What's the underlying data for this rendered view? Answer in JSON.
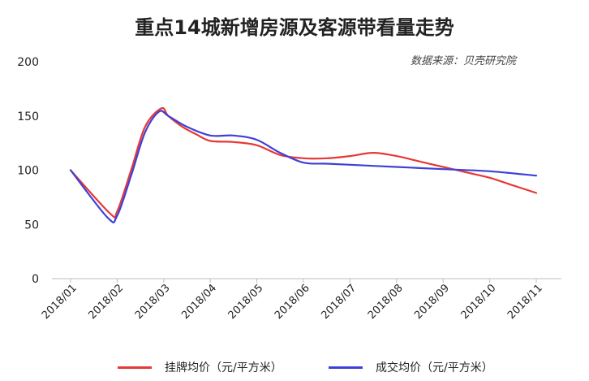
{
  "chart_data": {
    "type": "line",
    "title": "重点14城新增房源及客源带看量走势",
    "source": "数据来源：贝壳研究院",
    "xlabel": "",
    "ylabel": "",
    "ylim": [
      0,
      200
    ],
    "yticks": [
      0,
      50,
      100,
      150,
      200
    ],
    "grid": false,
    "legend_position": "bottom",
    "x": [
      "2018/01",
      "2018/02",
      "2018/03",
      "2018/04",
      "2018/05",
      "2018/06",
      "2018/07",
      "2018/08",
      "2018/09",
      "2018/10",
      "2018/11"
    ],
    "series": [
      {
        "name": "挂牌均价（元/平方米）",
        "color": "#e53935",
        "x": [
          0,
          0.85,
          1.0,
          1.3,
          1.6,
          1.95,
          2.1,
          2.4,
          2.7,
          3.0,
          3.5,
          4.0,
          4.5,
          5.0,
          5.5,
          6.0,
          6.5,
          7.0,
          7.5,
          8.0,
          8.5,
          9.0,
          9.5,
          10.0
        ],
        "values": [
          100,
          60,
          62,
          100,
          140,
          157,
          150,
          140,
          133,
          127,
          126,
          123,
          114,
          111,
          111,
          113,
          116,
          113,
          108,
          103,
          98,
          93,
          86,
          79
        ]
      },
      {
        "name": "成交均价（元/平方米）",
        "color": "#3f3fd9",
        "x": [
          0,
          0.8,
          1.0,
          1.3,
          1.6,
          1.9,
          2.1,
          2.5,
          3.0,
          3.5,
          4.0,
          4.5,
          5.0,
          5.5,
          6.0,
          7.0,
          8.0,
          9.0,
          10.0
        ],
        "values": [
          100,
          56,
          58,
          95,
          135,
          154,
          150,
          140,
          132,
          132,
          128,
          116,
          107,
          106,
          105,
          103,
          101,
          99,
          95
        ]
      }
    ]
  }
}
